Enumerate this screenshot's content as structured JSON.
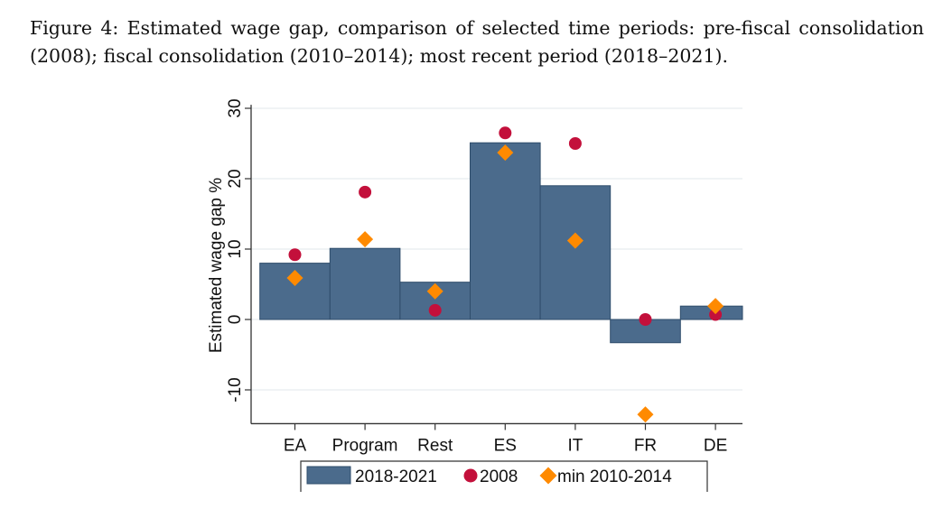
{
  "caption": "Figure 4: Estimated wage gap, comparison of selected time periods: pre-fiscal consolidation (2008); fiscal consolidation (2010–2014); most recent period (2018–2021).",
  "chart_data": {
    "type": "bar",
    "title": "",
    "xlabel": "",
    "ylabel": "Estimated wage gap %",
    "ylim": [
      -14.8,
      30.5
    ],
    "yticks": [
      -10,
      0,
      10,
      20,
      30
    ],
    "grid": true,
    "legend_position": "bottom",
    "categories": [
      "EA",
      "Program",
      "Rest",
      "ES",
      "IT",
      "FR",
      "DE"
    ],
    "series": [
      {
        "name": "2018-2021",
        "mark": "bar",
        "color": "#4b6b8c",
        "values": [
          8.0,
          10.1,
          5.3,
          25.1,
          19.0,
          -3.3,
          1.9
        ]
      },
      {
        "name": "2008",
        "mark": "circle",
        "color": "#c3103b",
        "values": [
          9.2,
          18.1,
          1.3,
          26.5,
          25.0,
          0.0,
          0.7
        ]
      },
      {
        "name": "min 2010-2014",
        "mark": "diamond",
        "color": "#ff8a00",
        "values": [
          5.9,
          11.4,
          4.0,
          23.7,
          11.2,
          -13.5,
          1.9
        ]
      }
    ]
  }
}
